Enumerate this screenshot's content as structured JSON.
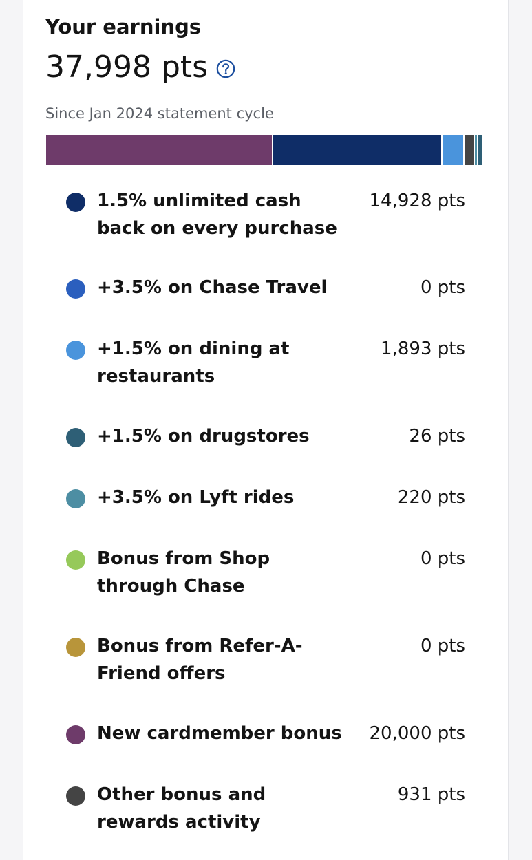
{
  "earnings": {
    "title": "Your earnings",
    "total": "37,998 pts",
    "help_icon": "question-circle-icon",
    "since": "Since Jan 2024 statement cycle"
  },
  "colors": {
    "accent": "#1a4d9e",
    "purple": "#6e3b6a",
    "navy": "#0f2d67",
    "blue": "#2b5fbe",
    "light_blue": "#4a94dc",
    "teal_dark": "#2e5f76",
    "teal": "#4d8ea3",
    "green": "#96c95a",
    "gold": "#b8953a",
    "dark_gray": "#444444"
  },
  "breakdown_bar": [
    {
      "name": "New cardmember bonus",
      "points": 20000,
      "color": "#6e3b6a"
    },
    {
      "name": "1.5% unlimited cash back on every purchase",
      "points": 14928,
      "color": "#0f2d67"
    },
    {
      "name": "+1.5% on dining at restaurants",
      "points": 1893,
      "color": "#4a94dc"
    },
    {
      "name": "Other bonus and rewards activity",
      "points": 931,
      "color": "#444444"
    },
    {
      "name": "+3.5% on Lyft rides",
      "points": 220,
      "color": "#4d8ea3"
    },
    {
      "name": "+1.5% on drugstores",
      "points": 26,
      "color": "#2e5f76"
    }
  ],
  "items": [
    {
      "label": "1.5% unlimited cash back on every purchase",
      "value": "14,928 pts",
      "color": "#0f2d67"
    },
    {
      "label": "+3.5% on Chase Travel",
      "value": "0 pts",
      "color": "#2b5fbe"
    },
    {
      "label": "+1.5% on dining at restaurants",
      "value": "1,893 pts",
      "color": "#4a94dc"
    },
    {
      "label": "+1.5% on drugstores",
      "value": "26 pts",
      "color": "#2e5f76"
    },
    {
      "label": "+3.5% on Lyft rides",
      "value": "220 pts",
      "color": "#4d8ea3"
    },
    {
      "label": "Bonus from Shop through Chase",
      "value": "0 pts",
      "color": "#96c95a"
    },
    {
      "label": "Bonus from Refer-A-Friend offers",
      "value": "0 pts",
      "color": "#b8953a"
    },
    {
      "label": "New cardmember bonus",
      "value": "20,000 pts",
      "color": "#6e3b6a"
    },
    {
      "label": "Other bonus and rewards activity",
      "value": "931 pts",
      "color": "#444444"
    }
  ]
}
